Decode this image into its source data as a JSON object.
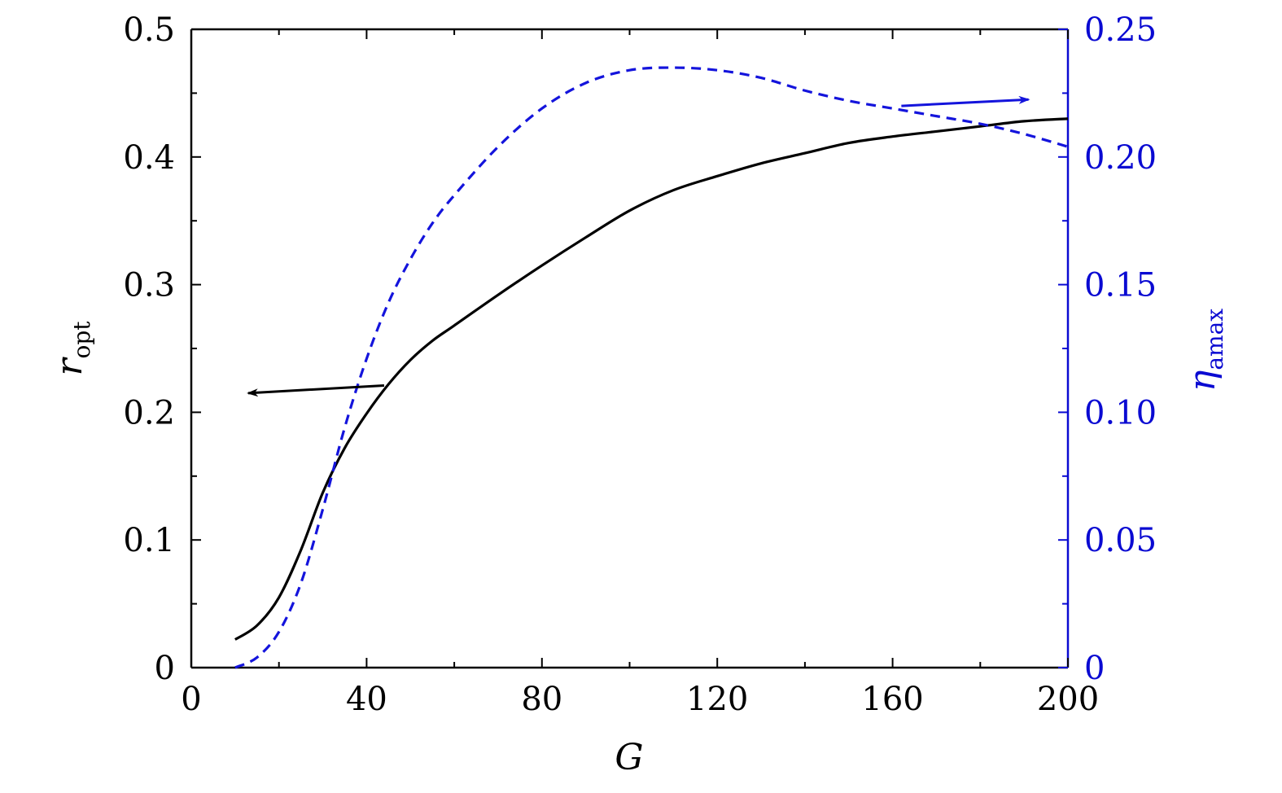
{
  "chart_data": {
    "type": "line",
    "xlabel": "G",
    "ylabel": {
      "main": "r",
      "sub": "opt"
    },
    "y2label": {
      "main": "η",
      "sub": "amax"
    },
    "xlim": [
      0,
      200
    ],
    "ylim": [
      0,
      0.5
    ],
    "y2lim": [
      0,
      0.25
    ],
    "xticks": [
      0,
      40,
      80,
      120,
      160,
      200
    ],
    "xtick_labels": [
      "0",
      "40",
      "80",
      "120",
      "160",
      "200"
    ],
    "yticks": [
      0,
      0.1,
      0.2,
      0.3,
      0.4,
      0.5
    ],
    "ytick_labels": [
      "0",
      "0.1",
      "0.2",
      "0.3",
      "0.4",
      "0.5"
    ],
    "y2ticks": [
      0,
      0.05,
      0.1,
      0.15,
      0.2,
      0.25
    ],
    "y2tick_labels": [
      "0",
      "0.05",
      "0.10",
      "0.15",
      "0.20",
      "0.25"
    ],
    "grid": false,
    "colors": {
      "left_axis": "#000000",
      "right_axis": "#0a0ad2",
      "series1": "#000000",
      "series2": "#1414dc"
    },
    "series": [
      {
        "axis": "left",
        "style": "solid",
        "x": [
          10,
          15,
          20,
          25,
          30,
          35,
          40,
          45,
          50,
          55,
          60,
          70,
          80,
          90,
          100,
          110,
          120,
          130,
          140,
          150,
          160,
          170,
          180,
          190,
          200
        ],
        "values": [
          0.022,
          0.033,
          0.055,
          0.092,
          0.137,
          0.172,
          0.199,
          0.222,
          0.241,
          0.256,
          0.268,
          0.292,
          0.315,
          0.337,
          0.358,
          0.374,
          0.385,
          0.395,
          0.403,
          0.411,
          0.416,
          0.42,
          0.424,
          0.428,
          0.43
        ]
      },
      {
        "axis": "right",
        "style": "dashed",
        "x": [
          10,
          15,
          20,
          25,
          30,
          35,
          40,
          45,
          50,
          55,
          60,
          70,
          80,
          90,
          100,
          110,
          120,
          130,
          140,
          150,
          160,
          170,
          180,
          190,
          200
        ],
        "values": [
          0.0,
          0.004,
          0.014,
          0.033,
          0.062,
          0.094,
          0.121,
          0.143,
          0.16,
          0.174,
          0.185,
          0.204,
          0.219,
          0.229,
          0.234,
          0.235,
          0.234,
          0.231,
          0.226,
          0.222,
          0.219,
          0.216,
          0.213,
          0.209,
          0.204
        ]
      }
    ],
    "annotations": [
      {
        "type": "arrow",
        "points_to": "left axis",
        "from": [
          44,
          0.221
        ],
        "to": [
          13,
          0.215
        ],
        "color": "#000000"
      },
      {
        "type": "arrow",
        "points_to": "right axis",
        "from": [
          162,
          0.22
        ],
        "to": [
          191,
          0.2225
        ],
        "color": "#1414dc",
        "axis": "right"
      }
    ]
  }
}
